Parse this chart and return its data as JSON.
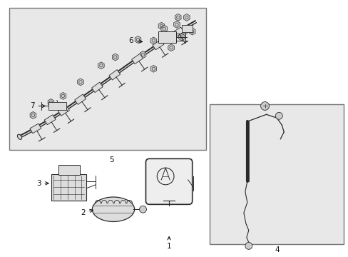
{
  "bg_color": "#ffffff",
  "box1_color": "#e8e8e8",
  "box2_color": "#e8e8e8",
  "line_color": "#2a2a2a",
  "label_fontsize": 7.5
}
